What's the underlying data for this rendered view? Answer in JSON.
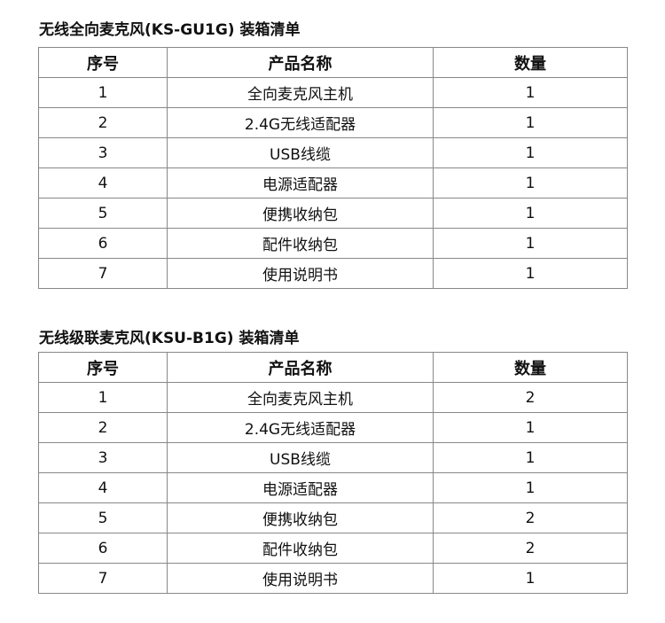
{
  "tables": [
    {
      "title": "无线全向麦克风(KS-GU1G) 装箱清单",
      "headers": [
        "序号",
        "产品名称",
        "数量"
      ],
      "rows": [
        [
          "1",
          "全向麦克风主机",
          "1"
        ],
        [
          "2",
          "2.4G无线适配器",
          "1"
        ],
        [
          "3",
          "USB线缆",
          "1"
        ],
        [
          "4",
          "电源适配器",
          "1"
        ],
        [
          "5",
          "便携收纳包",
          "1"
        ],
        [
          "6",
          "配件收纳包",
          "1"
        ],
        [
          "7",
          "使用说明书",
          "1"
        ]
      ]
    },
    {
      "title": "无线级联麦克风(KSU-B1G) 装箱清单",
      "headers": [
        "序号",
        "产品名称",
        "数量"
      ],
      "rows": [
        [
          "1",
          "全向麦克风主机",
          "2"
        ],
        [
          "2",
          "2.4G无线适配器",
          "1"
        ],
        [
          "3",
          "USB线缆",
          "1"
        ],
        [
          "4",
          "电源适配器",
          "1"
        ],
        [
          "5",
          "便携收纳包",
          "2"
        ],
        [
          "6",
          "配件收纳包",
          "2"
        ],
        [
          "7",
          "使用说明书",
          "1"
        ]
      ]
    }
  ]
}
